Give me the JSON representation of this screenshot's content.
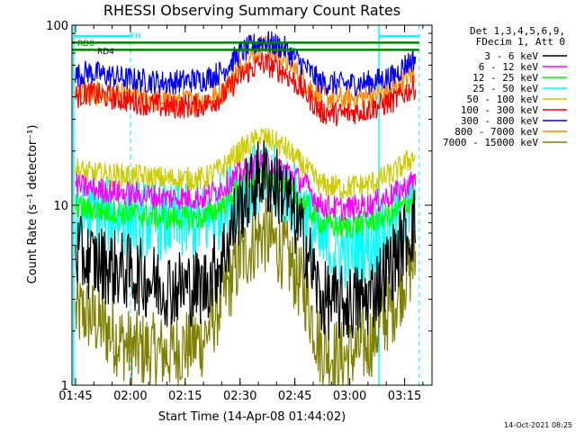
{
  "chart_data": {
    "type": "line",
    "title": "RHESSI Observing Summary Count Rates",
    "xlabel": "Start Time (14-Apr-08 01:44:02)",
    "ylabel": "Count Rate (s⁻¹ detector⁻¹)",
    "yscale": "log",
    "ylim": [
      1,
      100
    ],
    "xlim": [
      "01:44:02",
      "03:22:30"
    ],
    "x_ticks": [
      "01:45",
      "02:00",
      "02:15",
      "02:30",
      "02:45",
      "03:00",
      "03:15"
    ],
    "y_ticks": [
      "1",
      "10",
      "100"
    ],
    "legend_placement": "right",
    "legend_header": [
      "Det 1,3,4,5,6,9,",
      "FDecim 1, Att 0"
    ],
    "annotations": {
      "rd0": "RD0",
      "rd4": "RD4",
      "fn": "FN",
      "timestamp": "14-Oct-2021 08:25"
    },
    "series": [
      {
        "name": "3 - 6 keV",
        "color": "#000000",
        "x": [
          "01:45",
          "01:48",
          "02:00",
          "02:10",
          "02:20",
          "02:25",
          "02:30",
          "02:36",
          "02:42",
          "02:48",
          "02:52",
          "02:58",
          "03:05",
          "03:12",
          "03:15",
          "03:18"
        ],
        "values": [
          5.5,
          5,
          4.2,
          3.5,
          3.5,
          5,
          10,
          15,
          12,
          6,
          3,
          2.8,
          3,
          5,
          6.5,
          8
        ]
      },
      {
        "name": "6 - 12 keV",
        "color": "#ff00ff",
        "x": [
          "01:45",
          "01:48",
          "02:00",
          "02:10",
          "02:20",
          "02:25",
          "02:30",
          "02:36",
          "02:42",
          "02:48",
          "02:52",
          "02:58",
          "03:05",
          "03:12",
          "03:15",
          "03:18"
        ],
        "values": [
          13,
          12.5,
          11.5,
          11,
          11,
          12.5,
          15,
          17.5,
          16,
          13,
          10,
          9.5,
          10,
          11.5,
          12.5,
          14
        ]
      },
      {
        "name": "12 - 25 keV",
        "color": "#00ff00",
        "x": [
          "01:45",
          "01:48",
          "02:00",
          "02:10",
          "02:20",
          "02:25",
          "02:30",
          "02:36",
          "02:42",
          "02:48",
          "02:52",
          "02:58",
          "03:05",
          "03:12",
          "03:15",
          "03:18"
        ],
        "values": [
          10,
          9.5,
          9,
          8.5,
          8.5,
          10,
          13,
          15,
          13,
          10,
          8,
          7.5,
          8,
          9,
          10,
          11
        ]
      },
      {
        "name": "25 - 50 keV",
        "color": "#00ffff",
        "x": [
          "01:45",
          "01:48",
          "02:00",
          "02:10",
          "02:20",
          "02:25",
          "02:30",
          "02:36",
          "02:42",
          "02:48",
          "02:52",
          "02:58",
          "03:05",
          "03:12",
          "03:15",
          "03:18"
        ],
        "values": [
          7,
          9,
          8.5,
          8,
          8,
          9.5,
          12,
          14,
          12.5,
          9,
          6,
          5.5,
          6,
          8,
          9,
          10
        ]
      },
      {
        "name": "50 - 100 keV",
        "color": "#cccc00",
        "x": [
          "01:45",
          "01:48",
          "02:00",
          "02:10",
          "02:20",
          "02:25",
          "02:30",
          "02:36",
          "02:42",
          "02:48",
          "02:52",
          "02:58",
          "03:05",
          "03:12",
          "03:15",
          "03:18"
        ],
        "values": [
          16,
          15,
          14.5,
          14,
          14,
          16,
          20,
          24,
          21,
          16,
          13,
          12.5,
          13,
          15,
          17,
          19
        ]
      },
      {
        "name": "100 - 300 keV",
        "color": "#ff0000",
        "x": [
          "01:45",
          "01:48",
          "02:00",
          "02:10",
          "02:20",
          "02:25",
          "02:30",
          "02:36",
          "02:42",
          "02:48",
          "02:52",
          "02:58",
          "03:05",
          "03:12",
          "03:15",
          "03:18"
        ],
        "values": [
          40,
          42,
          38,
          35,
          36,
          40,
          52,
          62,
          55,
          42,
          33,
          32,
          34,
          38,
          42,
          46
        ]
      },
      {
        "name": "300 - 800 keV",
        "color": "#0000ff",
        "x": [
          "01:45",
          "01:48",
          "02:00",
          "02:10",
          "02:20",
          "02:25",
          "02:30",
          "02:36",
          "02:42",
          "02:48",
          "02:52",
          "02:58",
          "03:05",
          "03:12",
          "03:15",
          "03:18"
        ],
        "values": [
          52,
          55,
          50,
          48,
          50,
          55,
          70,
          82,
          75,
          58,
          48,
          47,
          48,
          52,
          60,
          66
        ]
      },
      {
        "name": "800 - 7000 keV",
        "color": "#ff8800",
        "x": [
          "01:45",
          "01:48",
          "02:00",
          "02:10",
          "02:20",
          "02:25",
          "02:30",
          "02:36",
          "02:42",
          "02:48",
          "02:52",
          "02:58",
          "03:05",
          "03:12",
          "03:15",
          "03:18"
        ],
        "values": [
          44,
          42,
          40,
          38,
          38,
          42,
          58,
          78,
          66,
          48,
          40,
          39,
          40,
          44,
          50,
          55
        ]
      },
      {
        "name": "7000 - 15000 keV",
        "color": "#808000",
        "x": [
          "01:45",
          "01:48",
          "02:00",
          "02:10",
          "02:20",
          "02:25",
          "02:30",
          "02:36",
          "02:42",
          "02:48",
          "02:52",
          "02:58",
          "03:05",
          "03:12",
          "03:15",
          "03:18"
        ],
        "values": [
          2.5,
          2.5,
          1.6,
          1.5,
          1.8,
          3,
          5,
          7,
          5.5,
          3.2,
          1.6,
          1.4,
          1.7,
          2.8,
          4,
          5
        ]
      }
    ],
    "reference_lines": [
      {
        "name": "RD0",
        "color": "#008000",
        "value": 80
      },
      {
        "name": "RD4",
        "color": "#008000",
        "value": 73
      }
    ],
    "vertical_markers": {
      "solid_color": "#00ffff",
      "solid": [
        "01:44:30",
        "03:08:00"
      ],
      "dashed": [
        "02:00:00",
        "03:19:00"
      ]
    },
    "top_segments": {
      "color": "#00ffff",
      "value": 87,
      "ranges": [
        [
          "01:44:30",
          "02:00:00"
        ],
        [
          "03:08:00",
          "03:19:00"
        ]
      ]
    }
  }
}
